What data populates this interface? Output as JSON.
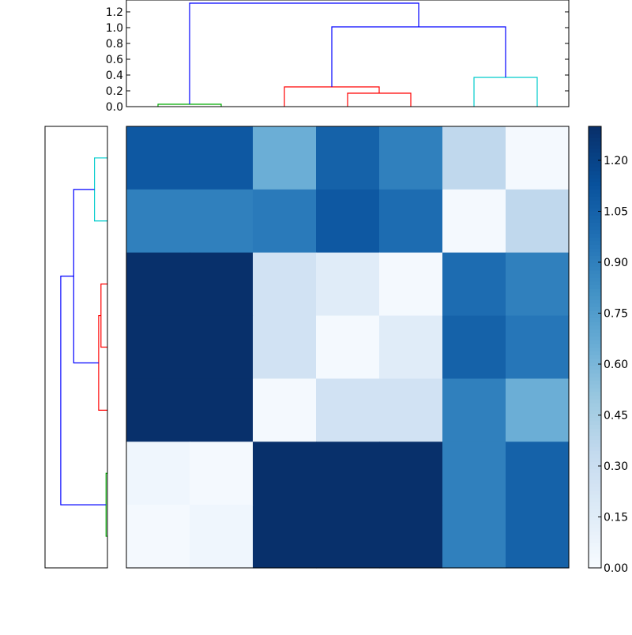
{
  "chart_data": [
    {
      "type": "dendrogram",
      "panel": "top",
      "ylim": [
        0.0,
        1.35
      ],
      "yticks": [
        "0.0",
        "0.2",
        "0.4",
        "0.6",
        "0.8",
        "1.0",
        "1.2"
      ],
      "leaf_count": 7,
      "links": [
        {
          "left": 0.5,
          "right": 1.5,
          "height": 0.03,
          "left_base": 0,
          "right_base": 0,
          "color": "#00aa00"
        },
        {
          "left": 3.5,
          "right": 4.5,
          "height": 0.17,
          "left_base": 0,
          "right_base": 0,
          "color": "#ff0000"
        },
        {
          "left": 2.5,
          "right": 4.0,
          "height": 0.25,
          "left_base": 0,
          "right_base": 0.17,
          "color": "#ff0000"
        },
        {
          "left": 5.5,
          "right": 6.5,
          "height": 0.37,
          "left_base": 0,
          "right_base": 0,
          "color": "#00cccc"
        },
        {
          "left": 3.25,
          "right": 6.0,
          "height": 1.01,
          "left_base": 0.25,
          "right_base": 0.37,
          "color": "#0000ff"
        },
        {
          "left": 1.0,
          "right": 4.625,
          "height": 1.31,
          "left_base": 0.03,
          "right_base": 1.01,
          "color": "#0000ff"
        }
      ]
    },
    {
      "type": "dendrogram",
      "panel": "left",
      "xlim": [
        0.0,
        1.35
      ],
      "leaf_count": 7,
      "links": [
        {
          "left": 0.5,
          "right": 1.5,
          "height": 0.28,
          "left_base": 0,
          "right_base": 0,
          "color": "#00cccc"
        },
        {
          "left": 2.5,
          "right": 3.5,
          "height": 0.14,
          "left_base": 0,
          "right_base": 0,
          "color": "#ff0000"
        },
        {
          "left": 3.0,
          "right": 4.5,
          "height": 0.19,
          "left_base": 0.14,
          "right_base": 0,
          "color": "#ff0000"
        },
        {
          "left": 5.5,
          "right": 6.5,
          "height": 0.03,
          "left_base": 0,
          "right_base": 0,
          "color": "#00aa00"
        },
        {
          "left": 1.0,
          "right": 3.75,
          "height": 0.73,
          "left_base": 0.28,
          "right_base": 0.19,
          "color": "#0000ff"
        },
        {
          "left": 2.375,
          "right": 6.0,
          "height": 1.01,
          "left_base": 0.73,
          "right_base": 0.03,
          "color": "#0000ff"
        }
      ]
    },
    {
      "type": "heatmap",
      "colormap": "Blues",
      "vmin": 0.0,
      "vmax": 1.3,
      "colorbar_ticks": [
        "0.00",
        "0.15",
        "0.30",
        "0.45",
        "0.60",
        "0.75",
        "0.90",
        "1.05",
        "1.20"
      ],
      "values": [
        [
          1.1,
          1.1,
          0.65,
          1.05,
          0.9,
          0.35,
          0.02
        ],
        [
          0.9,
          0.9,
          0.93,
          1.1,
          1.0,
          0.02,
          0.35
        ],
        [
          1.3,
          1.3,
          0.25,
          0.15,
          0.02,
          1.0,
          0.9
        ],
        [
          1.3,
          1.3,
          0.25,
          0.02,
          0.15,
          1.05,
          0.95
        ],
        [
          1.3,
          1.3,
          0.02,
          0.25,
          0.25,
          0.9,
          0.65
        ],
        [
          0.05,
          0.02,
          1.3,
          1.3,
          1.3,
          0.9,
          1.05
        ],
        [
          0.02,
          0.05,
          1.3,
          1.3,
          1.3,
          0.9,
          1.05
        ]
      ]
    }
  ]
}
